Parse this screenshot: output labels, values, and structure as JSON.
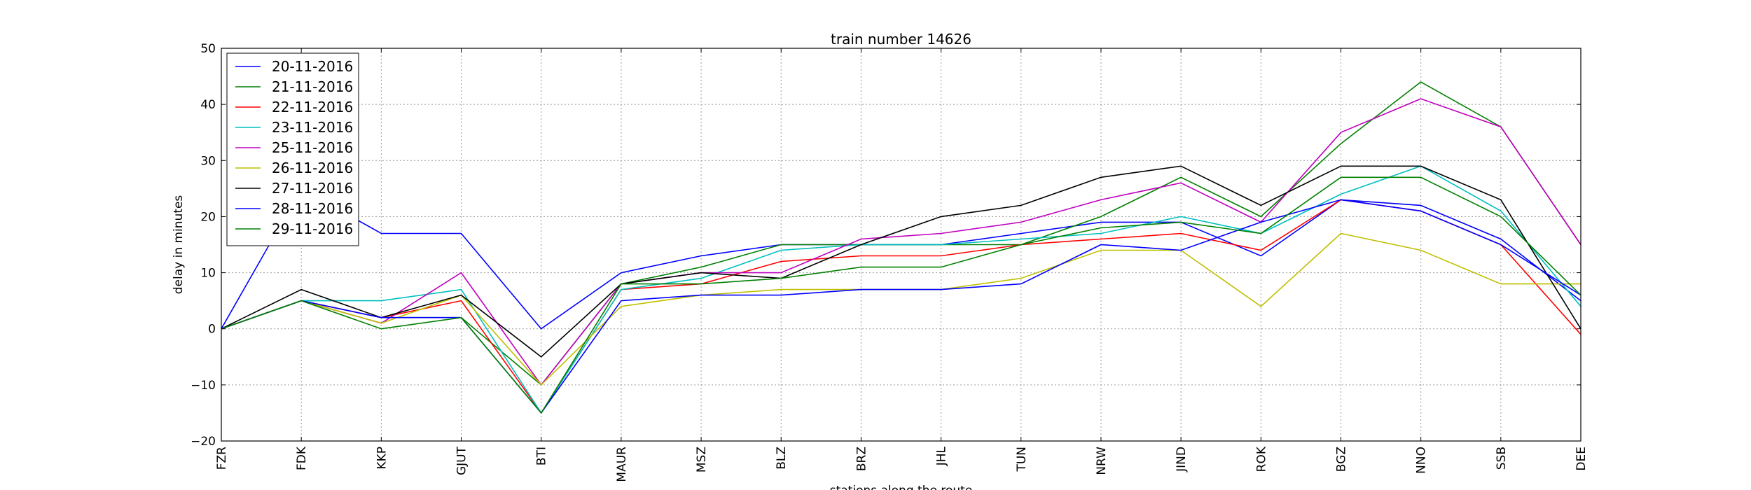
{
  "chart_data": {
    "type": "line",
    "title": "train number 14626",
    "xlabel": "stations along the route",
    "ylabel": "delay in minutes",
    "ylim": [
      -20,
      50
    ],
    "yticks": [
      "−20",
      "−10",
      "0",
      "10",
      "20",
      "30",
      "40",
      "50"
    ],
    "grid": true,
    "legend_position": "top-left",
    "categories": [
      "FZR",
      "FDK",
      "KKP",
      "GJUT",
      "BTI",
      "MAUR",
      "MSZ",
      "BLZ",
      "BRZ",
      "JHL",
      "TUN",
      "NRW",
      "JIND",
      "ROK",
      "BGZ",
      "NNO",
      "SSB",
      "DEE"
    ],
    "series": [
      {
        "name": "20-11-2016",
        "color": "#0000ff",
        "values": [
          0,
          25,
          17,
          17,
          0,
          10,
          13,
          15,
          15,
          15,
          17,
          19,
          19,
          13,
          23,
          22,
          16,
          5
        ]
      },
      {
        "name": "21-11-2016",
        "color": "#008000",
        "values": [
          0,
          5,
          2,
          2,
          -10,
          8,
          11,
          15,
          15,
          15,
          15,
          20,
          27,
          20,
          33,
          44,
          36,
          15
        ]
      },
      {
        "name": "22-11-2016",
        "color": "#ff0000",
        "values": [
          0,
          5,
          2,
          5,
          -15,
          7,
          8,
          12,
          13,
          13,
          15,
          16,
          17,
          14,
          23,
          21,
          15,
          -1
        ]
      },
      {
        "name": "23-11-2016",
        "color": "#00bfbf",
        "values": [
          0,
          5,
          5,
          7,
          -15,
          7,
          9,
          14,
          15,
          15,
          16,
          17,
          20,
          17,
          24,
          29,
          21,
          4
        ]
      },
      {
        "name": "25-11-2016",
        "color": "#bf00bf",
        "values": [
          0,
          5,
          1,
          10,
          -10,
          8,
          10,
          10,
          16,
          17,
          19,
          23,
          26,
          19,
          35,
          41,
          36,
          15
        ]
      },
      {
        "name": "26-11-2016",
        "color": "#bfbf00",
        "values": [
          0,
          5,
          1,
          6,
          -10,
          4,
          6,
          7,
          7,
          7,
          9,
          14,
          14,
          4,
          17,
          14,
          8,
          8
        ]
      },
      {
        "name": "27-11-2016",
        "color": "#000000",
        "values": [
          0,
          7,
          2,
          6,
          -5,
          8,
          10,
          9,
          15,
          20,
          22,
          27,
          29,
          22,
          29,
          29,
          23,
          0
        ]
      },
      {
        "name": "28-11-2016",
        "color": "#0000ff",
        "values": [
          0,
          5,
          2,
          2,
          -15,
          5,
          6,
          6,
          7,
          7,
          8,
          15,
          14,
          19,
          23,
          21,
          15,
          6
        ]
      },
      {
        "name": "29-11-2016",
        "color": "#008000",
        "values": [
          0,
          5,
          0,
          2,
          -15,
          8,
          8,
          9,
          11,
          11,
          15,
          18,
          19,
          17,
          27,
          27,
          20,
          6
        ]
      }
    ]
  }
}
